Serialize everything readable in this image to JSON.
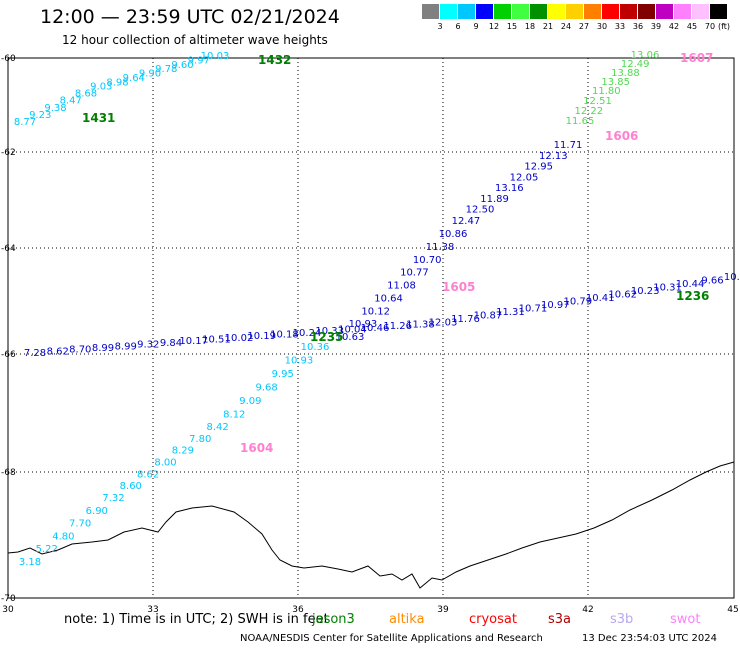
{
  "title": "12:00 — 23:59 UTC 02/21/2024",
  "subtitle": "12 hour collection of altimeter wave heights",
  "colorbar": {
    "unit": "(ft)",
    "bins": [
      {
        "label": "3",
        "color": "#808080"
      },
      {
        "label": "6",
        "color": "#00ffff"
      },
      {
        "label": "9",
        "color": "#00c8ff"
      },
      {
        "label": "12",
        "color": "#0000ff"
      },
      {
        "label": "15",
        "color": "#00d000"
      },
      {
        "label": "18",
        "color": "#40ff40"
      },
      {
        "label": "21",
        "color": "#009000"
      },
      {
        "label": "24",
        "color": "#ffff00"
      },
      {
        "label": "27",
        "color": "#ffd000"
      },
      {
        "label": "30",
        "color": "#ff8000"
      },
      {
        "label": "33",
        "color": "#ff0000"
      },
      {
        "label": "36",
        "color": "#c00000"
      },
      {
        "label": "39",
        "color": "#800000"
      },
      {
        "label": "42",
        "color": "#c000c0"
      },
      {
        "label": "45",
        "color": "#ff80ff"
      },
      {
        "label": "70",
        "color": "#ffc0ff"
      },
      {
        "label": "",
        "color": "#000000"
      }
    ]
  },
  "axes": {
    "lon_ticks": [
      "30",
      "33",
      "36",
      "39",
      "42",
      "45"
    ],
    "lat_ticks": [
      "-60",
      "-62",
      "-64",
      "-66",
      "-68",
      "-70"
    ]
  },
  "passes": [
    {
      "time": "1431",
      "time_color": "#008000",
      "color": "#00c8ff",
      "labels": [
        "8.77",
        "9.23",
        "9.38",
        "8.47",
        "8.68",
        "9.03",
        "8.98",
        "9.64",
        "9.90",
        "9.78",
        "9.60",
        "9.97",
        "10.03"
      ]
    },
    {
      "time": "1432",
      "time_color": "#008000",
      "color": "#0000c8",
      "labels": []
    },
    {
      "time": "1604",
      "time_color": "#ff80d0",
      "color": "#00c8ff",
      "labels": [
        "3.18",
        "5.22",
        "4.80",
        "7.70",
        "6.90",
        "7.32",
        "8.60",
        "8.62",
        "8.00",
        "8.29",
        "7.80",
        "8.42",
        "8.12",
        "9.09",
        "9.68",
        "9.95",
        "10.93",
        "10.36"
      ]
    },
    {
      "time": "1605",
      "time_color": "#ff80d0",
      "color": "#0000c8",
      "labels": [
        "10.63",
        "10.93",
        "10.12",
        "10.64",
        "11.08",
        "10.77",
        "10.70",
        "11.38",
        "10.86",
        "12.47",
        "12.50",
        "11.89",
        "13.16",
        "12.05",
        "12.95",
        "12.13",
        "11.71"
      ]
    },
    {
      "time": "1606",
      "time_color": "#ff80d0",
      "color": "#50d850",
      "labels": [
        "11.65",
        "12.22",
        "12.51",
        "11.80",
        "13.85",
        "13.88",
        "12.49",
        "13.06"
      ]
    },
    {
      "time": "1607",
      "time_color": "#ff80d0",
      "color": "#50d850",
      "labels": []
    },
    {
      "time": "1236",
      "time_color": "#008000",
      "color": "#0000c8",
      "labels": [
        "7.28",
        "8.62",
        "8.70",
        "8.99",
        "8.99",
        "9.32",
        "9.84",
        "10.17",
        "10.51",
        "10.02",
        "10.19",
        "10.18",
        "10.24",
        "10.33",
        "10.04",
        "10.46",
        "11.26",
        "11.38",
        "12.03",
        "11.76",
        "10.87",
        "11.31",
        "10.71",
        "10.97",
        "10.79",
        "10.41",
        "10.62",
        "10.23",
        "10.31",
        "10.44",
        "9.66",
        "10.4"
      ]
    },
    {
      "time": "1235",
      "time_color": "#008000",
      "color": "#00a000",
      "labels": []
    }
  ],
  "note": "note:  1) Time is in UTC;  2) SWH is in feet",
  "satellites": [
    {
      "name": "jason3",
      "color": "#008000"
    },
    {
      "name": "altika",
      "color": "#ff8c00"
    },
    {
      "name": "cryosat",
      "color": "#ff0000"
    },
    {
      "name": "s3a",
      "color": "#b00000"
    },
    {
      "name": "s3b",
      "color": "#b8a8f0"
    },
    {
      "name": "swot",
      "color": "#ff80ff"
    }
  ],
  "footer": "NOAA/NESDIS Center for Satellite Applications and Research",
  "footer_date": "13 Dec 23:54:03 UTC 2024"
}
